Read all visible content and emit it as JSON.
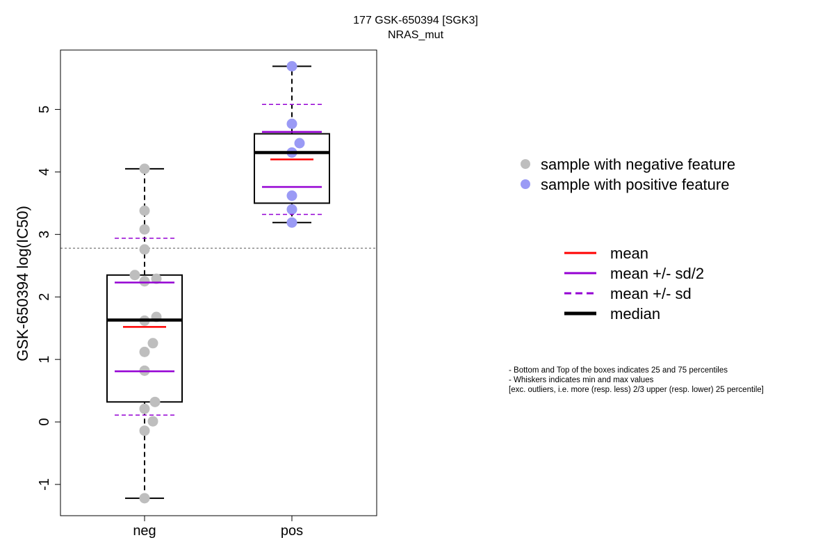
{
  "chart_data": {
    "type": "boxplot",
    "title": "177 GSK-650394 [SGK3]",
    "subtitle": "NRAS_mut",
    "ylabel": "GSK-650394 log(IC50)",
    "xlabel": "",
    "ylim": [
      -1.5,
      5.95
    ],
    "y_ticks": [
      -1,
      0,
      1,
      2,
      3,
      4,
      5
    ],
    "categories": [
      "neg",
      "pos"
    ],
    "reference_line": 2.78,
    "groups": [
      {
        "category": "neg",
        "min": -1.22,
        "q1": 0.32,
        "median": 1.63,
        "q3": 2.35,
        "max": 4.05,
        "mean": 1.52,
        "mean_minus_half_sd": 0.81,
        "mean_plus_half_sd": 2.23,
        "mean_minus_sd": 0.11,
        "mean_plus_sd": 2.94,
        "points": [
          {
            "x_offset": 0.0,
            "y": 4.05
          },
          {
            "x_offset": 0.0,
            "y": 3.38
          },
          {
            "x_offset": 0.0,
            "y": 3.08
          },
          {
            "x_offset": 0.0,
            "y": 2.76
          },
          {
            "x_offset": -0.14,
            "y": 2.35
          },
          {
            "x_offset": 0.0,
            "y": 2.25
          },
          {
            "x_offset": 0.17,
            "y": 2.29
          },
          {
            "x_offset": 0.17,
            "y": 1.68
          },
          {
            "x_offset": 0.0,
            "y": 1.62
          },
          {
            "x_offset": 0.12,
            "y": 1.26
          },
          {
            "x_offset": 0.0,
            "y": 1.12
          },
          {
            "x_offset": 0.0,
            "y": 0.82
          },
          {
            "x_offset": 0.15,
            "y": 0.32
          },
          {
            "x_offset": 0.0,
            "y": 0.21
          },
          {
            "x_offset": 0.12,
            "y": 0.01
          },
          {
            "x_offset": 0.0,
            "y": -0.14
          },
          {
            "x_offset": 0.0,
            "y": -1.22
          }
        ]
      },
      {
        "category": "pos",
        "min": 3.19,
        "q1": 3.5,
        "median": 4.31,
        "q3": 4.61,
        "max": 5.69,
        "mean": 4.2,
        "mean_minus_half_sd": 3.76,
        "mean_plus_half_sd": 4.64,
        "mean_minus_sd": 3.32,
        "mean_plus_sd": 5.08,
        "points": [
          {
            "x_offset": 0.0,
            "y": 5.69
          },
          {
            "x_offset": 0.0,
            "y": 4.77
          },
          {
            "x_offset": 0.11,
            "y": 4.46
          },
          {
            "x_offset": 0.0,
            "y": 4.31
          },
          {
            "x_offset": 0.0,
            "y": 3.62
          },
          {
            "x_offset": 0.0,
            "y": 3.4
          },
          {
            "x_offset": 0.0,
            "y": 3.19
          }
        ]
      }
    ],
    "point_legend": [
      {
        "label": "sample with negative feature",
        "color": "#bebebe"
      },
      {
        "label": "sample with positive feature",
        "color": "#9a9af5"
      }
    ],
    "line_legend": [
      {
        "label": "mean",
        "color": "#ff0000",
        "style": "solid"
      },
      {
        "label": "mean +/- sd/2",
        "color": "#9400d3",
        "style": "solid"
      },
      {
        "label": "mean +/- sd",
        "color": "#9400d3",
        "style": "dashed"
      },
      {
        "label": "median",
        "color": "#000000",
        "style": "thick"
      }
    ],
    "notes": [
      "- Bottom and Top of the boxes indicates 25 and 75 percentiles",
      "- Whiskers indicates min and max values",
      "[exc. outliers, i.e. more (resp. less) 2/3 upper (resp. lower) 25 percentile]"
    ],
    "colors": {
      "neg_point": "#bebebe",
      "pos_point": "#9a9af5",
      "mean": "#ff0000",
      "sd": "#9400d3",
      "median": "#000000",
      "reference": "#555555"
    }
  }
}
